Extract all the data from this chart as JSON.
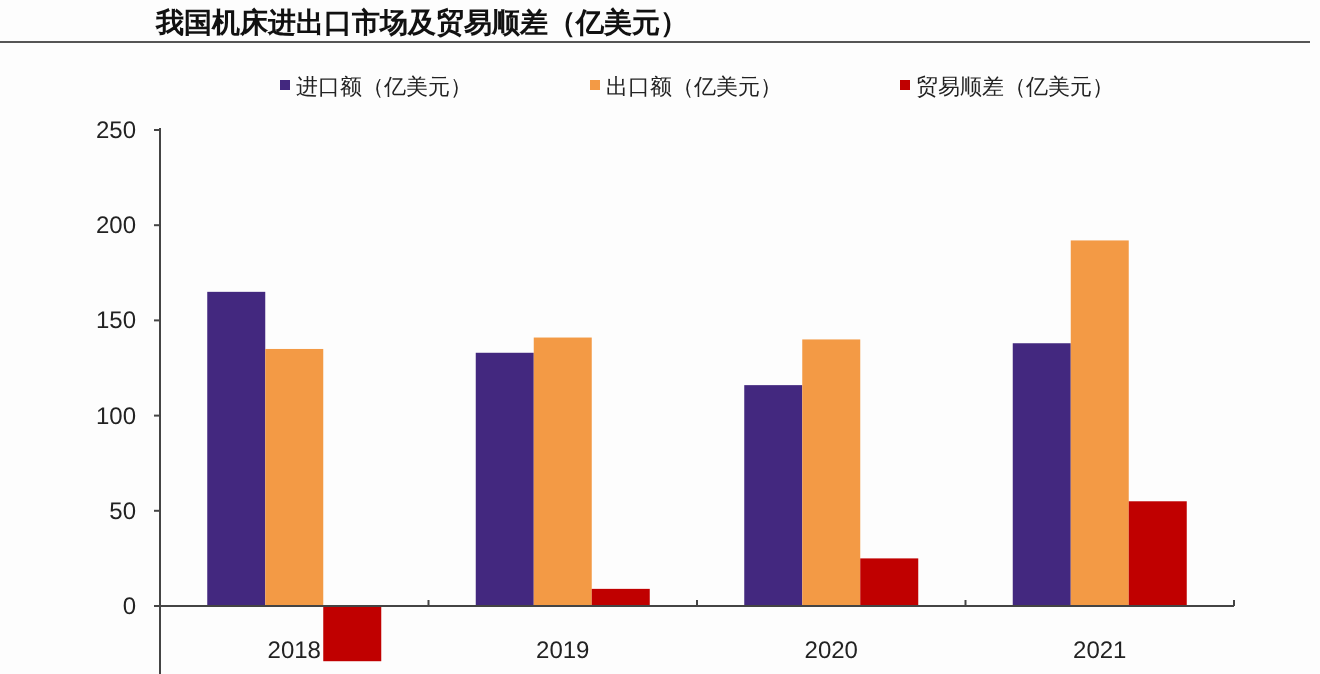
{
  "chart_data": {
    "type": "bar",
    "title": "我国机床进出口市场及贸易顺差（亿美元）",
    "categories": [
      "2018",
      "2019",
      "2020",
      "2021"
    ],
    "series": [
      {
        "name": "进口额（亿美元）",
        "color": "#43287f",
        "values": [
          165,
          133,
          116,
          138
        ]
      },
      {
        "name": "出口额（亿美元）",
        "color": "#f39a45",
        "values": [
          135,
          141,
          140,
          192
        ]
      },
      {
        "name": "贸易顺差（亿美元）",
        "color": "#c00000",
        "values": [
          -29,
          9,
          25,
          55
        ]
      }
    ],
    "ylim": [
      -36,
      250
    ],
    "yticks": [
      0,
      50,
      100,
      150,
      200,
      250
    ],
    "grid": false,
    "legend": "top"
  }
}
